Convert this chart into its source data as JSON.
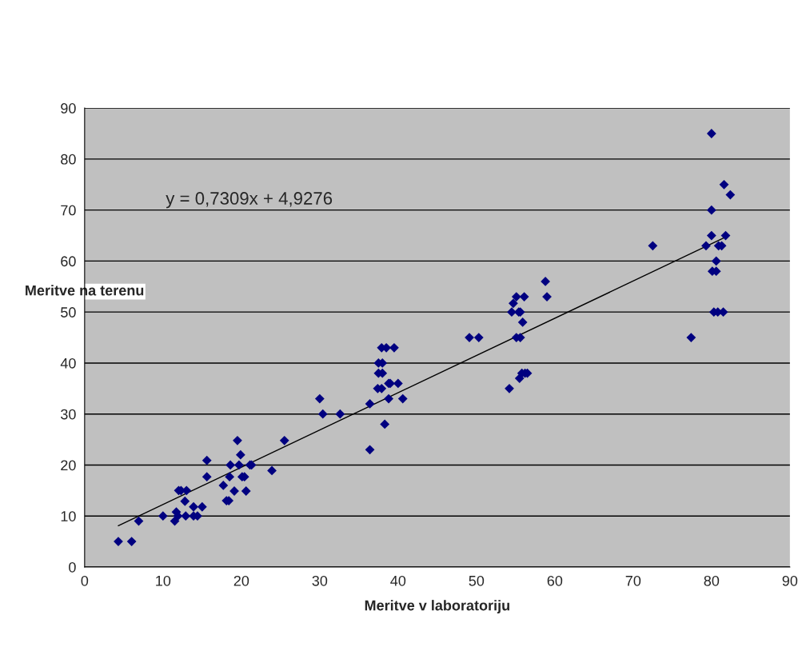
{
  "chart_data": {
    "type": "scatter",
    "xlabel": "Meritve v laboratoriju",
    "ylabel": "Meritve na terenu",
    "annotations": [
      "y = 0,7309x + 4,9276"
    ],
    "xlim": [
      0,
      90
    ],
    "ylim": [
      0,
      90
    ],
    "xticks": [
      0,
      10,
      20,
      30,
      40,
      50,
      60,
      70,
      80,
      90
    ],
    "yticks": [
      0,
      10,
      20,
      30,
      40,
      50,
      60,
      70,
      80,
      90
    ],
    "grid": "y",
    "legend": false,
    "marker": "diamond",
    "series": [
      {
        "color": "#000080",
        "x": [
          4.3,
          6,
          6.9,
          10,
          11.5,
          11.7,
          11.9,
          12.9,
          12,
          12.3,
          13,
          12.8,
          13.9,
          13.9,
          14.4,
          15,
          15.6,
          15.6,
          17.7,
          18.1,
          18.4,
          19.1,
          18.6,
          19.7,
          18.5,
          19.5,
          19.9,
          20.1,
          20.4,
          20.6,
          21.1,
          21.3,
          23.9,
          25.5,
          30,
          30.4,
          32.6,
          36.4,
          36.4,
          37.5,
          38,
          37.5,
          38,
          37.4,
          37.9,
          37.9,
          38.5,
          39.5,
          38.3,
          38.8,
          39,
          40,
          38.8,
          40.6,
          49.1,
          50.3,
          54.2,
          54.5,
          54.7,
          55.1,
          56.1,
          55.4,
          55.6,
          55.9,
          55.1,
          55.6,
          55.5,
          55.8,
          56.2,
          56.5,
          58.8,
          59,
          72.5,
          77.4,
          79.3,
          80,
          80,
          80,
          80.1,
          80.3,
          80.6,
          80.6,
          80.8,
          80.9,
          81.3,
          81.5,
          81.6,
          81.8,
          82.4
        ],
        "values": [
          5,
          5,
          9,
          10,
          9,
          10.8,
          10,
          10,
          15,
          15,
          15,
          12.9,
          11.8,
          10,
          10,
          11.8,
          20.9,
          17.7,
          16,
          13,
          13,
          14.9,
          20,
          20,
          17.7,
          24.8,
          22,
          17.7,
          17.7,
          14.9,
          20,
          20,
          18.9,
          24.8,
          33,
          30,
          30,
          32,
          23,
          40,
          40,
          38,
          38,
          35,
          35,
          43,
          43,
          43,
          28,
          36,
          36,
          36,
          33,
          33,
          45,
          45,
          35,
          50,
          51.7,
          53,
          53,
          50,
          50,
          48,
          45,
          45,
          37,
          38,
          38,
          38,
          56,
          53,
          63,
          45,
          63,
          85,
          70,
          65,
          58,
          50,
          60,
          58,
          50,
          63,
          63,
          50,
          75,
          65,
          73
        ]
      },
      {
        "type": "line",
        "color": "#000000",
        "marker": "none",
        "x": [
          4.3,
          81.8
        ],
        "values": [
          8.1,
          64.7
        ]
      }
    ]
  }
}
